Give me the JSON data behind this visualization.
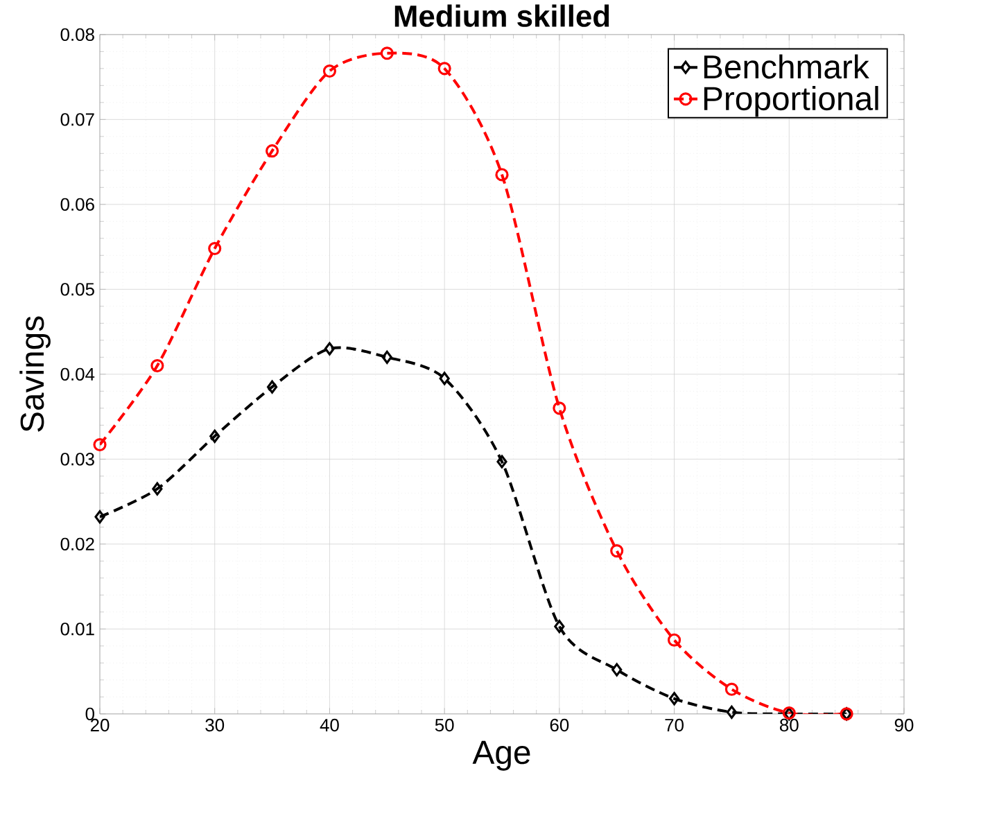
{
  "chart_data": {
    "type": "line",
    "title": "Medium skilled",
    "xlabel": "Age",
    "ylabel": "Savings",
    "x": [
      20,
      25,
      30,
      35,
      40,
      45,
      50,
      55,
      60,
      65,
      70,
      75,
      80,
      85
    ],
    "series": [
      {
        "name": "Benchmark",
        "color": "#000000",
        "marker": "diamond",
        "values": [
          0.0232,
          0.0265,
          0.0327,
          0.0385,
          0.043,
          0.042,
          0.0395,
          0.0297,
          0.0103,
          0.0052,
          0.0018,
          0.0002,
          0,
          0
        ]
      },
      {
        "name": "Proportional",
        "color": "#ff0000",
        "marker": "circle",
        "values": [
          0.0317,
          0.041,
          0.0548,
          0.0663,
          0.0757,
          0.0778,
          0.076,
          0.0635,
          0.036,
          0.0192,
          0.0087,
          0.0029,
          0.0001,
          0
        ]
      }
    ],
    "xlim": [
      20,
      90
    ],
    "xticks": [
      20,
      30,
      40,
      50,
      60,
      70,
      80,
      90
    ],
    "ylim": [
      0,
      0.08
    ],
    "yticks": [
      0,
      0.01,
      0.02,
      0.03,
      0.04,
      0.05,
      0.06,
      0.07,
      0.08
    ],
    "grid": true,
    "legend": "top right",
    "line_style": "dashed"
  }
}
